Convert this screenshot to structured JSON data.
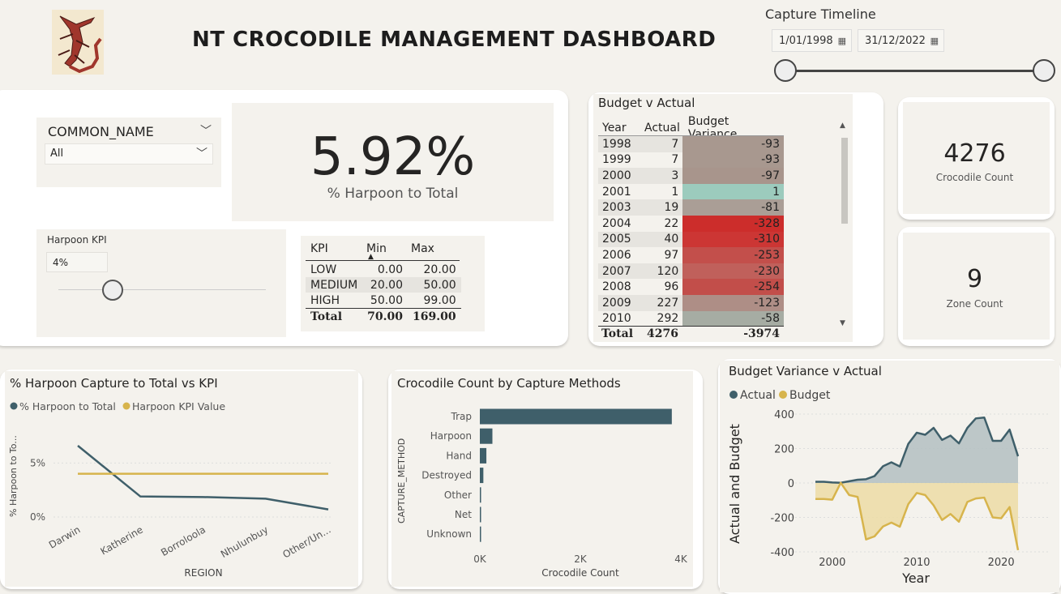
{
  "header": {
    "title": "NT CROCODILE MANAGEMENT DASHBOARD",
    "logo_icon": "crocodile-logo"
  },
  "timeline": {
    "label": "Capture Timeline",
    "start_date": "1/01/1998",
    "end_date": "31/12/2022",
    "start_fraction": 0,
    "end_fraction": 1
  },
  "slicer": {
    "title": "COMMON_NAME",
    "selected": "All"
  },
  "kpi_card": {
    "value": "5.92%",
    "caption": "% Harpoon to Total"
  },
  "harpoon_kpi": {
    "label": "Harpoon KPI",
    "value": "4%",
    "slider_fraction": 0.26
  },
  "kpi_table": {
    "headers": [
      "KPI",
      "Min",
      "Max"
    ],
    "rows": [
      [
        "LOW",
        "0.00",
        "20.00"
      ],
      [
        "MEDIUM",
        "20.00",
        "50.00"
      ],
      [
        "HIGH",
        "50.00",
        "99.00"
      ]
    ],
    "total": [
      "Total",
      "70.00",
      "169.00"
    ]
  },
  "budget_table": {
    "title": "Budget v Actual",
    "headers": [
      "Year",
      "Actual",
      "Budget Variance"
    ],
    "rows": [
      {
        "year": "1998",
        "actual": "7",
        "variance": "-93",
        "color": "#a8988f"
      },
      {
        "year": "1999",
        "actual": "7",
        "variance": "-93",
        "color": "#a8988f"
      },
      {
        "year": "2000",
        "actual": "3",
        "variance": "-97",
        "color": "#a8958c"
      },
      {
        "year": "2001",
        "actual": "1",
        "variance": "1",
        "color": "#9ccbbd"
      },
      {
        "year": "2003",
        "actual": "19",
        "variance": "-81",
        "color": "#aa9e96"
      },
      {
        "year": "2004",
        "actual": "22",
        "variance": "-328",
        "color": "#cc2d2b"
      },
      {
        "year": "2005",
        "actual": "40",
        "variance": "-310",
        "color": "#cc3634"
      },
      {
        "year": "2006",
        "actual": "97",
        "variance": "-253",
        "color": "#c34f4b"
      },
      {
        "year": "2007",
        "actual": "120",
        "variance": "-230",
        "color": "#c0605b"
      },
      {
        "year": "2008",
        "actual": "96",
        "variance": "-254",
        "color": "#c24e4a"
      },
      {
        "year": "2009",
        "actual": "227",
        "variance": "-123",
        "color": "#ae8e86"
      },
      {
        "year": "2010",
        "actual": "292",
        "variance": "-58",
        "color": "#a6aca3"
      }
    ],
    "total": {
      "label": "Total",
      "actual": "4276",
      "variance": "-3974"
    }
  },
  "cards": {
    "crocodile_count": {
      "value": "4276",
      "label": "Crocodile Count"
    },
    "zone_count": {
      "value": "9",
      "label": "Zone Count"
    }
  },
  "colors": {
    "teal": "#3f5f6a",
    "gold": "#d7b44c",
    "teal_fill": "#b3c0c1",
    "gold_fill": "#ecdca5"
  },
  "chart_data": [
    {
      "type": "line",
      "title": "% Harpoon Capture to Total vs KPI",
      "xlabel": "REGION",
      "ylabel": "% Harpoon to To...",
      "categories": [
        "Darwin",
        "Katherine",
        "Borroloola",
        "Nhulunbuy",
        "Other/Un..."
      ],
      "series": [
        {
          "name": "% Harpoon to Total",
          "values": [
            6.6,
            1.9,
            1.85,
            1.7,
            0.7
          ]
        },
        {
          "name": "Harpoon KPI Value",
          "values": [
            4,
            4,
            4,
            4,
            4
          ]
        }
      ],
      "yticks": [
        "0%",
        "5%"
      ],
      "ylim": [
        0,
        7.5
      ],
      "legend": "top-left"
    },
    {
      "type": "bar",
      "orientation": "horizontal",
      "title": "Crocodile Count by Capture Methods",
      "xlabel": "Crocodile Count",
      "ylabel": "CAPTURE_METHOD",
      "categories": [
        "Trap",
        "Harpoon",
        "Hand",
        "Destroyed",
        "Other",
        "Net",
        "Unknown"
      ],
      "values": [
        3820,
        250,
        130,
        70,
        20,
        15,
        10
      ],
      "xticks": [
        "0K",
        "2K",
        "4K"
      ],
      "xlim": [
        0,
        4000
      ]
    },
    {
      "type": "area",
      "title": "Budget Variance v Actual",
      "xlabel": "Year",
      "ylabel": "Actual and Budget",
      "x": [
        1998,
        1999,
        2000,
        2001,
        2002,
        2003,
        2004,
        2005,
        2006,
        2007,
        2008,
        2009,
        2010,
        2011,
        2012,
        2013,
        2014,
        2015,
        2016,
        2017,
        2018,
        2019,
        2020,
        2021,
        2022
      ],
      "series": [
        {
          "name": "Actual",
          "values": [
            7,
            7,
            3,
            1,
            10,
            19,
            22,
            40,
            97,
            120,
            96,
            227,
            292,
            280,
            320,
            250,
            275,
            230,
            320,
            375,
            380,
            245,
            245,
            310,
            155
          ]
        },
        {
          "name": "Budget",
          "values": [
            -93,
            -93,
            -97,
            1,
            -70,
            -81,
            -328,
            -310,
            -253,
            -230,
            -254,
            -123,
            -58,
            -70,
            -130,
            -215,
            -180,
            -225,
            -110,
            -90,
            -85,
            -200,
            -205,
            -140,
            -390
          ]
        }
      ],
      "yticks": [
        "-400",
        "-200",
        "0",
        "200",
        "400"
      ],
      "xticks": [
        "2000",
        "2010",
        "2020"
      ],
      "ylim": [
        -430,
        440
      ],
      "xlim": [
        1996,
        2024
      ],
      "legend": "top-left"
    }
  ]
}
